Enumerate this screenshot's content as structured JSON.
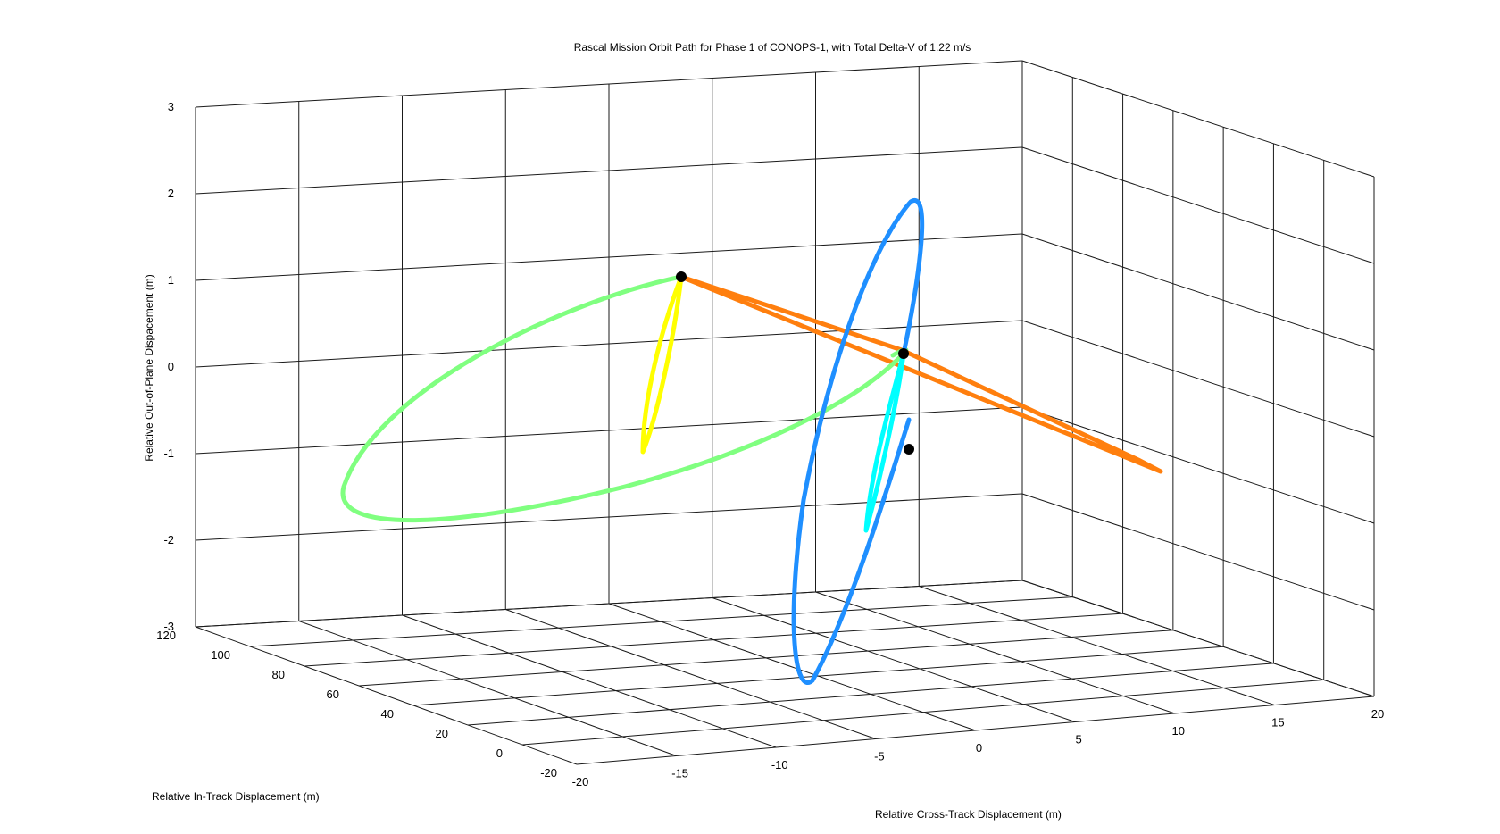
{
  "chart_data": {
    "type": "line",
    "title": "Rascal Mission Orbit Path for Phase 1 of CONOPS-1, with Total Delta-V of 1.22 m/s",
    "xlabel": "Relative Cross-Track Displacement (m)",
    "ylabel": "Relative In-Track Displacement (m)",
    "zlabel": "Relative Out-of-Plane Dispacement (m)",
    "grid": true,
    "xlim": [
      -20,
      20
    ],
    "ylim": [
      -20,
      120
    ],
    "zlim": [
      -3,
      3
    ],
    "x_ticks": [
      "-20",
      "-15",
      "-10",
      "-5",
      "0",
      "5",
      "10",
      "15",
      "20"
    ],
    "y_ticks": [
      "-20",
      "0",
      "20",
      "40",
      "60",
      "80",
      "100",
      "120"
    ],
    "z_ticks": [
      "-3",
      "-2",
      "-1",
      "0",
      "1",
      "2",
      "3"
    ],
    "series": [
      {
        "color": "#ff7f0e",
        "note": "orange trajectory segment"
      },
      {
        "color": "#80ff80",
        "note": "green trajectory loop"
      },
      {
        "color": "#ffff00",
        "note": "yellow trajectory loop"
      },
      {
        "color": "#1f8fff",
        "note": "blue trajectory loop"
      },
      {
        "color": "#00ffff",
        "note": "cyan trajectory loop"
      }
    ],
    "markers": [
      {
        "color": "#000000",
        "note": "maneuver point"
      },
      {
        "color": "#000000",
        "note": "maneuver point"
      },
      {
        "color": "#000000",
        "note": "maneuver point"
      }
    ]
  }
}
